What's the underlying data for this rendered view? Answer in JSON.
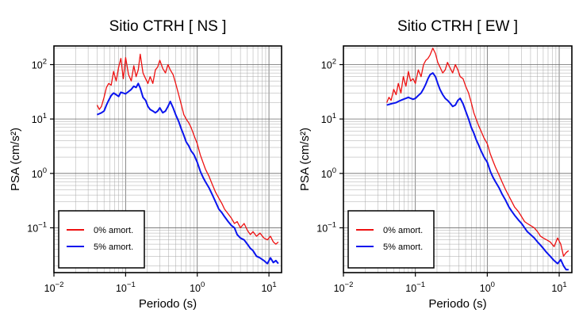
{
  "chart_data": [
    {
      "type": "line",
      "title": "Sitio CTRH [ NS ]",
      "xlabel": "Periodo (s)",
      "ylabel": "PSA (cm/s²)",
      "xscale": "log",
      "yscale": "log",
      "xlim": [
        0.01,
        15
      ],
      "ylim": [
        0.015,
        220
      ],
      "xticks": [
        {
          "base": "10",
          "exp": "−2"
        },
        {
          "base": "10",
          "exp": "−1"
        },
        {
          "base": "10",
          "exp": "0"
        },
        {
          "base": "10",
          "exp": "1"
        }
      ],
      "yticks": [
        {
          "base": "10",
          "exp": "−1"
        },
        {
          "base": "10",
          "exp": "0"
        },
        {
          "base": "10",
          "exp": "1"
        },
        {
          "base": "10",
          "exp": "2"
        }
      ],
      "grid": true,
      "legend_position": "bottom-left",
      "series": [
        {
          "name": "0% amort.",
          "color": "#ee1111",
          "x": [
            0.04,
            0.043,
            0.046,
            0.05,
            0.054,
            0.058,
            0.063,
            0.068,
            0.074,
            0.08,
            0.086,
            0.093,
            0.1,
            0.11,
            0.12,
            0.13,
            0.14,
            0.15,
            0.16,
            0.175,
            0.19,
            0.205,
            0.22,
            0.24,
            0.26,
            0.28,
            0.3,
            0.33,
            0.36,
            0.39,
            0.42,
            0.46,
            0.5,
            0.55,
            0.6,
            0.65,
            0.7,
            0.76,
            0.82,
            0.9,
            1.0,
            1.1,
            1.2,
            1.3,
            1.45,
            1.6,
            1.8,
            2.0,
            2.2,
            2.4,
            2.7,
            3.0,
            3.3,
            3.6,
            4.0,
            4.5,
            5.0,
            5.5,
            6.0,
            6.7,
            7.5,
            8.5,
            9.5,
            10.5,
            11.5,
            12.5,
            13.5
          ],
          "y": [
            18,
            15,
            17,
            25,
            38,
            45,
            42,
            75,
            50,
            90,
            130,
            55,
            135,
            65,
            50,
            95,
            60,
            80,
            155,
            70,
            55,
            45,
            60,
            45,
            80,
            90,
            120,
            85,
            70,
            100,
            80,
            65,
            45,
            28,
            18,
            12,
            10,
            8.5,
            7,
            5,
            3.5,
            2.2,
            1.6,
            1.2,
            0.9,
            0.65,
            0.45,
            0.35,
            0.28,
            0.22,
            0.18,
            0.15,
            0.12,
            0.13,
            0.1,
            0.12,
            0.09,
            0.075,
            0.085,
            0.07,
            0.08,
            0.065,
            0.06,
            0.07,
            0.055,
            0.05,
            0.055
          ]
        },
        {
          "name": "5% amort.",
          "color": "#0a14ee",
          "x": [
            0.04,
            0.043,
            0.046,
            0.05,
            0.054,
            0.058,
            0.063,
            0.068,
            0.074,
            0.08,
            0.086,
            0.093,
            0.1,
            0.11,
            0.12,
            0.13,
            0.14,
            0.15,
            0.16,
            0.175,
            0.19,
            0.205,
            0.22,
            0.24,
            0.26,
            0.28,
            0.3,
            0.33,
            0.36,
            0.39,
            0.42,
            0.46,
            0.5,
            0.55,
            0.6,
            0.65,
            0.7,
            0.76,
            0.82,
            0.9,
            1.0,
            1.1,
            1.2,
            1.3,
            1.45,
            1.6,
            1.8,
            2.0,
            2.2,
            2.4,
            2.7,
            3.0,
            3.3,
            3.6,
            4.0,
            4.5,
            5.0,
            5.5,
            6.0,
            6.7,
            7.5,
            8.5,
            9.5,
            10.5,
            11.5,
            12.5,
            13.5
          ],
          "y": [
            12,
            12.5,
            13,
            14,
            18,
            22,
            27,
            30,
            28,
            26,
            31,
            30,
            29,
            32,
            35,
            40,
            38,
            45,
            37,
            25,
            22,
            17,
            15,
            14,
            13,
            14,
            16,
            13,
            14,
            17,
            21,
            16,
            12,
            9,
            6.5,
            5,
            3.8,
            3.2,
            2.6,
            2.2,
            1.6,
            1.1,
            0.85,
            0.7,
            0.55,
            0.42,
            0.3,
            0.22,
            0.19,
            0.16,
            0.13,
            0.11,
            0.1,
            0.075,
            0.065,
            0.06,
            0.05,
            0.042,
            0.038,
            0.03,
            0.028,
            0.025,
            0.022,
            0.028,
            0.023,
            0.025,
            0.022
          ]
        }
      ]
    },
    {
      "type": "line",
      "title": "Sitio CTRH [ EW ]",
      "xlabel": "Periodo (s)",
      "ylabel": "PSA (cm/s²)",
      "xscale": "log",
      "yscale": "log",
      "xlim": [
        0.01,
        15
      ],
      "ylim": [
        0.015,
        220
      ],
      "xticks": [
        {
          "base": "10",
          "exp": "−2"
        },
        {
          "base": "10",
          "exp": "−1"
        },
        {
          "base": "10",
          "exp": "0"
        },
        {
          "base": "10",
          "exp": "1"
        }
      ],
      "yticks": [
        {
          "base": "10",
          "exp": "−1"
        },
        {
          "base": "10",
          "exp": "0"
        },
        {
          "base": "10",
          "exp": "1"
        },
        {
          "base": "10",
          "exp": "2"
        }
      ],
      "grid": true,
      "legend_position": "bottom-left",
      "series": [
        {
          "name": "0% amort.",
          "color": "#ee1111",
          "x": [
            0.04,
            0.043,
            0.046,
            0.05,
            0.054,
            0.058,
            0.063,
            0.068,
            0.074,
            0.08,
            0.086,
            0.093,
            0.1,
            0.11,
            0.12,
            0.13,
            0.14,
            0.15,
            0.16,
            0.175,
            0.19,
            0.205,
            0.22,
            0.24,
            0.26,
            0.28,
            0.3,
            0.33,
            0.36,
            0.39,
            0.42,
            0.46,
            0.5,
            0.55,
            0.6,
            0.65,
            0.7,
            0.76,
            0.82,
            0.9,
            1.0,
            1.1,
            1.2,
            1.3,
            1.45,
            1.6,
            1.8,
            2.0,
            2.2,
            2.4,
            2.7,
            3.0,
            3.3,
            3.6,
            4.0,
            4.5,
            5.0,
            5.5,
            6.0,
            6.7,
            7.5,
            8.5,
            9.5,
            10.5,
            11.5,
            12.5,
            13.5
          ],
          "y": [
            20,
            25,
            22,
            35,
            28,
            45,
            30,
            60,
            40,
            75,
            50,
            55,
            45,
            80,
            60,
            100,
            120,
            130,
            150,
            200,
            160,
            110,
            90,
            70,
            80,
            110,
            90,
            70,
            100,
            80,
            60,
            55,
            40,
            30,
            20,
            13,
            10,
            7.5,
            6,
            4.5,
            3.5,
            2.3,
            1.7,
            1.3,
            0.95,
            0.7,
            0.5,
            0.38,
            0.3,
            0.24,
            0.2,
            0.16,
            0.13,
            0.12,
            0.11,
            0.1,
            0.085,
            0.07,
            0.065,
            0.06,
            0.055,
            0.045,
            0.065,
            0.05,
            0.03,
            0.035,
            0.038
          ]
        },
        {
          "name": "5% amort.",
          "color": "#0a14ee",
          "x": [
            0.04,
            0.043,
            0.046,
            0.05,
            0.054,
            0.058,
            0.063,
            0.068,
            0.074,
            0.08,
            0.086,
            0.093,
            0.1,
            0.11,
            0.12,
            0.13,
            0.14,
            0.15,
            0.16,
            0.175,
            0.19,
            0.205,
            0.22,
            0.24,
            0.26,
            0.28,
            0.3,
            0.33,
            0.36,
            0.39,
            0.42,
            0.46,
            0.5,
            0.55,
            0.6,
            0.65,
            0.7,
            0.76,
            0.82,
            0.9,
            1.0,
            1.1,
            1.2,
            1.3,
            1.45,
            1.6,
            1.8,
            2.0,
            2.2,
            2.4,
            2.7,
            3.0,
            3.3,
            3.6,
            4.0,
            4.5,
            5.0,
            5.5,
            6.0,
            6.7,
            7.5,
            8.5,
            9.5,
            10.5,
            11.5,
            12.5,
            13.5
          ],
          "y": [
            18,
            18.5,
            19,
            19.5,
            20,
            21,
            22,
            23,
            24,
            25,
            24,
            23,
            24,
            27,
            30,
            36,
            44,
            55,
            65,
            70,
            60,
            45,
            35,
            28,
            24,
            22,
            20,
            17,
            18,
            22,
            24,
            19,
            14,
            10,
            7,
            5.5,
            4.2,
            3.3,
            2.6,
            2.0,
            1.6,
            1.1,
            0.85,
            0.7,
            0.55,
            0.42,
            0.32,
            0.24,
            0.2,
            0.17,
            0.14,
            0.12,
            0.1,
            0.085,
            0.075,
            0.065,
            0.055,
            0.048,
            0.042,
            0.035,
            0.03,
            0.025,
            0.022,
            0.026,
            0.02,
            0.017,
            0.017
          ]
        }
      ]
    }
  ]
}
